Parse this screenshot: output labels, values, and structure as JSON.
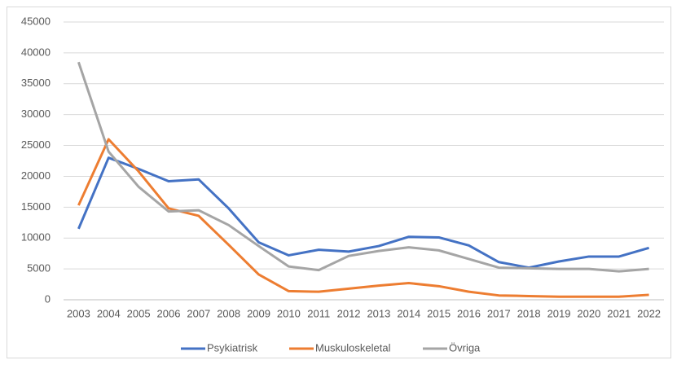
{
  "chart_data": {
    "type": "line",
    "categories": [
      "2003",
      "2004",
      "2005",
      "2006",
      "2007",
      "2008",
      "2009",
      "2010",
      "2011",
      "2012",
      "2013",
      "2014",
      "2015",
      "2016",
      "2017",
      "2018",
      "2019",
      "2020",
      "2021",
      "2022"
    ],
    "series": [
      {
        "name": "Psykiatrisk",
        "color": "#4472c4",
        "values": [
          11500,
          23000,
          21200,
          19200,
          19500,
          14800,
          9300,
          7200,
          8100,
          7800,
          8700,
          10200,
          10100,
          8800,
          6100,
          5200,
          6200,
          7000,
          7000,
          8400
        ]
      },
      {
        "name": "Muskuloskeletal",
        "color": "#ed7d31",
        "values": [
          15300,
          26000,
          20800,
          14800,
          13600,
          8900,
          4100,
          1400,
          1300,
          1800,
          2300,
          2700,
          2200,
          1300,
          700,
          600,
          500,
          500,
          500,
          800
        ]
      },
      {
        "name": "Övriga",
        "color": "#a5a5a5",
        "values": [
          38500,
          24000,
          18300,
          14300,
          14500,
          12100,
          8700,
          5400,
          4800,
          7100,
          7900,
          8500,
          8000,
          6600,
          5200,
          5100,
          5000,
          5000,
          4600,
          5000
        ]
      }
    ],
    "ylim": [
      0,
      45000
    ],
    "yticks": [
      0,
      5000,
      10000,
      15000,
      20000,
      25000,
      30000,
      35000,
      40000,
      45000
    ],
    "grid": true,
    "legend": "bottom"
  }
}
